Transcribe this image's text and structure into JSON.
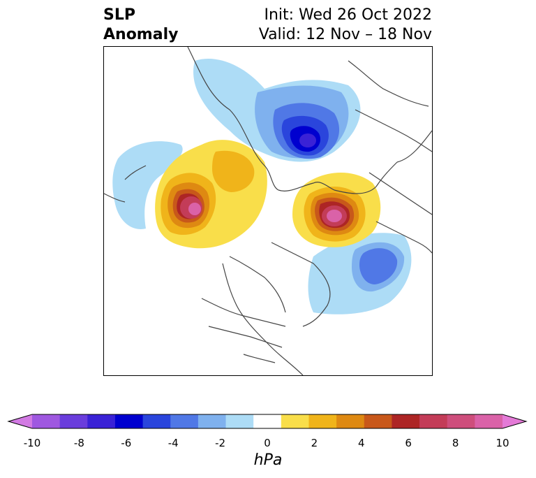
{
  "title": {
    "line1_left": "SLP",
    "line2_left": "Anomaly",
    "line1_right": "Init: Wed 26 Oct 2022",
    "line2_right": "Valid: 12 Nov – 18 Nov"
  },
  "colorbar": {
    "unit": "hPa",
    "ticks": [
      "-10",
      "-8",
      "-6",
      "-4",
      "-2",
      "0",
      "2",
      "4",
      "6",
      "8",
      "10"
    ],
    "colors": [
      "#d27ae3",
      "#9f58e0",
      "#6a3ddc",
      "#3a22d6",
      "#0000cf",
      "#2a45dc",
      "#5078e6",
      "#7fb1ee",
      "#addcf6",
      "#ffffff",
      "#f9de4a",
      "#f0b41a",
      "#de8912",
      "#c8581a",
      "#ad2525",
      "#c33c58",
      "#ce4e7c",
      "#da62a8",
      "#e47ad7"
    ]
  }
}
